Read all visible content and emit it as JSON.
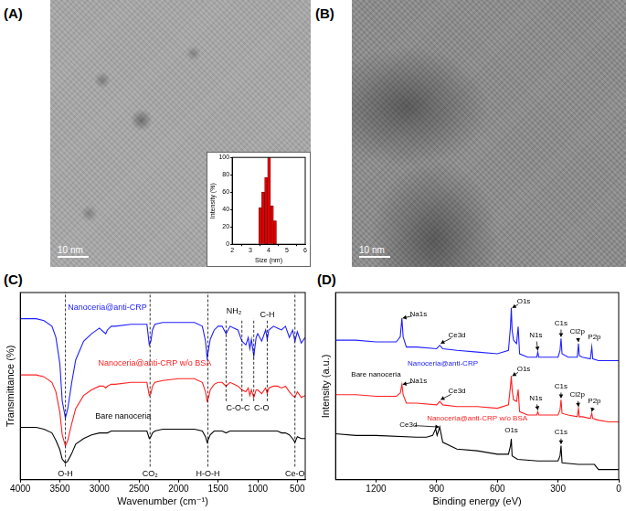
{
  "figure": {
    "panel_labels": [
      "(A)",
      "(B)",
      "(C)",
      "(D)"
    ],
    "scale_bars": [
      "10 nm",
      "10 nm"
    ]
  },
  "chart_data": [
    {
      "type": "histogram",
      "x_label": "Size (nm)",
      "y_label": "Intensity (%)",
      "bins": [
        3.46,
        3.62,
        3.78,
        3.94,
        4.1,
        4.26,
        4.42
      ],
      "counts": [
        42,
        60,
        77,
        100,
        44,
        27
      ],
      "color": "#e00000",
      "xlim": [
        2,
        6
      ],
      "xticks": [
        2,
        3,
        4,
        5,
        6
      ],
      "ylim": [
        0,
        100
      ],
      "yticks": [
        0,
        20,
        40,
        60,
        80,
        100
      ],
      "grid": false
    },
    {
      "type": "line",
      "x_label": "Wavenumber (cm⁻¹)",
      "y_label": "Transmittance (%)",
      "xlim": [
        4000,
        400
      ],
      "xticks": [
        4000,
        3500,
        3000,
        2500,
        2000,
        1500,
        1000,
        500
      ],
      "ylim": [
        0,
        100
      ],
      "tick_labels": "x",
      "grid": false,
      "series": [
        {
          "name": "Nanoceria@anti-CRP",
          "color": "#2020ff",
          "label_at": [
            2900,
            92
          ],
          "x": [
            4000,
            3800,
            3700,
            3600,
            3550,
            3500,
            3470,
            3430,
            3400,
            3350,
            3300,
            3200,
            3100,
            3000,
            2950,
            2920,
            2900,
            2850,
            2800,
            2600,
            2400,
            2370,
            2350,
            2330,
            2300,
            2200,
            2000,
            1800,
            1700,
            1660,
            1640,
            1620,
            1600,
            1550,
            1500,
            1450,
            1400,
            1350,
            1300,
            1250,
            1200,
            1150,
            1120,
            1100,
            1080,
            1050,
            1020,
            1000,
            950,
            900,
            880,
            860,
            800,
            750,
            700,
            650,
            600,
            560,
            530,
            500,
            450,
            400
          ],
          "values": [
            86,
            86,
            85,
            82,
            76,
            62,
            42,
            33,
            38,
            52,
            64,
            74,
            78,
            81,
            79,
            78,
            80,
            82,
            82,
            83,
            83,
            72,
            74,
            80,
            83,
            84,
            84,
            84,
            82,
            74,
            65,
            70,
            75,
            80,
            82,
            82,
            78,
            82,
            81,
            80,
            74,
            72,
            76,
            70,
            75,
            66,
            76,
            78,
            74,
            80,
            75,
            80,
            82,
            81,
            80,
            82,
            76,
            80,
            74,
            79,
            73,
            76
          ]
        },
        {
          "name": "Nanoceria@anti-CRP w/o BSA",
          "color": "#ff2020",
          "label_at": [
            2300,
            62
          ],
          "x": [
            4000,
            3800,
            3700,
            3600,
            3550,
            3500,
            3470,
            3430,
            3400,
            3350,
            3300,
            3200,
            3100,
            3000,
            2950,
            2920,
            2900,
            2850,
            2800,
            2600,
            2400,
            2370,
            2350,
            2330,
            2300,
            2200,
            2000,
            1800,
            1700,
            1660,
            1640,
            1620,
            1600,
            1550,
            1500,
            1450,
            1400,
            1350,
            1300,
            1250,
            1200,
            1150,
            1120,
            1100,
            1080,
            1050,
            1020,
            1000,
            950,
            900,
            880,
            860,
            800,
            750,
            700,
            650,
            600,
            560,
            530,
            500,
            450,
            400
          ],
          "values": [
            56,
            56,
            55,
            52,
            47,
            36,
            24,
            18,
            21,
            30,
            38,
            45,
            48,
            50,
            50,
            49,
            50,
            51,
            51,
            52,
            52,
            45,
            46,
            50,
            52,
            53,
            54,
            54,
            52,
            47,
            42,
            44,
            48,
            51,
            52,
            52,
            50,
            52,
            51,
            50,
            48,
            47,
            49,
            45,
            48,
            44,
            48,
            48,
            46,
            49,
            46,
            49,
            50,
            50,
            49,
            50,
            47,
            45,
            44,
            47,
            44,
            45
          ]
        },
        {
          "name": "Bare nanoceria",
          "color": "#000000",
          "label_at": [
            2700,
            34
          ],
          "x": [
            4000,
            3800,
            3700,
            3600,
            3550,
            3500,
            3470,
            3430,
            3400,
            3350,
            3300,
            3200,
            3100,
            3000,
            2950,
            2920,
            2900,
            2850,
            2800,
            2600,
            2400,
            2370,
            2350,
            2330,
            2300,
            2200,
            2000,
            1800,
            1700,
            1660,
            1640,
            1620,
            1600,
            1550,
            1500,
            1450,
            1400,
            1350,
            1300,
            1250,
            1200,
            1150,
            1120,
            1100,
            1080,
            1050,
            1020,
            1000,
            950,
            900,
            880,
            860,
            800,
            750,
            700,
            650,
            600,
            560,
            530,
            500,
            450,
            400
          ],
          "values": [
            28,
            28,
            27,
            25,
            21,
            16,
            11,
            9,
            10,
            14,
            19,
            22,
            24,
            25,
            25,
            25,
            25,
            26,
            26,
            26,
            26,
            22,
            23,
            25,
            26,
            27,
            27,
            27,
            26,
            23,
            20,
            22,
            24,
            26,
            26,
            26,
            25,
            26,
            26,
            26,
            26,
            26,
            26,
            26,
            26,
            26,
            26,
            26,
            26,
            26,
            26,
            26,
            26,
            26,
            25,
            25,
            24,
            22,
            20,
            23,
            22,
            22
          ]
        }
      ],
      "annotations": [
        {
          "text": "O-H",
          "x": 3430,
          "y": 3
        },
        {
          "text": "CO₂",
          "x": 2360,
          "y": 3
        },
        {
          "text": "H-O-H",
          "x": 1630,
          "y": 3
        },
        {
          "text": "Ce-O",
          "x": 530,
          "y": 3
        },
        {
          "text": "NH₂",
          "x": 1300,
          "y": 90
        },
        {
          "text": "C-H",
          "x": 880,
          "y": 88
        },
        {
          "text": "C-O-C",
          "x": 1250,
          "y": 38
        },
        {
          "text": "C-O",
          "x": 950,
          "y": 38
        }
      ],
      "guide_lines": [
        {
          "x": 3430,
          "y": [
            7,
            100
          ]
        },
        {
          "x": 2360,
          "y": [
            7,
            100
          ]
        },
        {
          "x": 1630,
          "y": [
            7,
            100
          ]
        },
        {
          "x": 530,
          "y": [
            7,
            100
          ]
        },
        {
          "x": 1400,
          "y": [
            42,
            86
          ]
        },
        {
          "x": 1200,
          "y": [
            42,
            86
          ]
        },
        {
          "x": 1050,
          "y": [
            42,
            86
          ]
        },
        {
          "x": 880,
          "y": [
            42,
            85
          ]
        }
      ]
    },
    {
      "type": "line",
      "x_label": "Binding energy (eV)",
      "y_label": "Intensity (a.u.)",
      "xlim": [
        1400,
        0
      ],
      "xticks": [
        1200,
        900,
        600,
        300,
        0
      ],
      "ylim": [
        0,
        110
      ],
      "tick_labels": "x",
      "grid": false,
      "series": [
        {
          "name": "Nanoceria@anti-CRP",
          "color": "#2020ff",
          "label_at": [
            870,
            68
          ],
          "x": [
            1400,
            1300,
            1200,
            1100,
            1080,
            1072,
            1066,
            1050,
            1000,
            900,
            885,
            870,
            800,
            700,
            600,
            545,
            535,
            531,
            527,
            520,
            505,
            497,
            490,
            450,
            405,
            400,
            395,
            300,
            290,
            285,
            280,
            250,
            205,
            199,
            195,
            180,
            140,
            133,
            128,
            100,
            50,
            0
          ],
          "values": [
            82,
            82,
            81,
            81,
            84,
            95,
            84,
            78,
            78,
            77,
            79,
            77,
            76,
            75,
            74,
            76,
            90,
            101,
            88,
            82,
            80,
            90,
            74,
            72,
            72,
            75,
            72,
            72,
            76,
            83,
            74,
            72,
            72,
            80,
            73,
            72,
            71,
            78,
            71,
            70,
            70,
            70
          ]
        },
        {
          "name": "Nanoceria@anti-CRP w/o BSA",
          "color": "#ff2020",
          "label_at": [
            700,
            36
          ],
          "x": [
            1400,
            1300,
            1200,
            1100,
            1080,
            1072,
            1066,
            1050,
            1000,
            900,
            885,
            870,
            800,
            700,
            600,
            545,
            535,
            531,
            527,
            520,
            505,
            497,
            490,
            450,
            405,
            400,
            395,
            300,
            290,
            285,
            280,
            250,
            205,
            199,
            195,
            180,
            140,
            133,
            128,
            100,
            50,
            0
          ],
          "values": [
            50,
            50,
            49,
            49,
            51,
            56,
            50,
            45,
            45,
            44,
            46,
            44,
            43,
            43,
            42,
            44,
            55,
            61,
            53,
            47,
            46,
            53,
            40,
            38,
            38,
            40,
            38,
            38,
            41,
            47,
            39,
            38,
            37,
            42,
            37,
            37,
            36,
            39,
            36,
            35,
            34,
            34
          ]
        },
        {
          "name": "Bare nanoceria",
          "color": "#000000",
          "label_at": [
            1200,
            62
          ],
          "x": [
            1400,
            1300,
            1200,
            1000,
            950,
            920,
            905,
            898,
            885,
            880,
            870,
            800,
            700,
            600,
            545,
            535,
            531,
            527,
            500,
            400,
            300,
            290,
            285,
            280,
            200,
            120,
            100,
            50,
            0
          ],
          "values": [
            27,
            26,
            26,
            25,
            25,
            26,
            30,
            26,
            31,
            28,
            22,
            18,
            17,
            15,
            15,
            20,
            24,
            14,
            12,
            11,
            11,
            14,
            20,
            10,
            9,
            9,
            6,
            6,
            6
          ]
        }
      ],
      "annotations": [
        {
          "text": "Na1s",
          "x": 990,
          "y": 97,
          "point": [
            1068,
            95
          ]
        },
        {
          "text": "Ce3d",
          "x": 800,
          "y": 85,
          "point": [
            880,
            80
          ]
        },
        {
          "text": "O1s",
          "x": 470,
          "y": 105,
          "point": [
            526,
            101
          ]
        },
        {
          "text": "N1s",
          "x": 410,
          "y": 85,
          "point": [
            400,
            76
          ]
        },
        {
          "text": "C1s",
          "x": 285,
          "y": 92,
          "point": [
            285,
            84
          ]
        },
        {
          "text": "Cl2p",
          "x": 205,
          "y": 87,
          "point": [
            199,
            81
          ]
        },
        {
          "text": "P2p",
          "x": 120,
          "y": 84,
          "point": [
            133,
            79
          ]
        },
        {
          "text": "Na1s",
          "x": 990,
          "y": 58,
          "point": [
            1068,
            56
          ]
        },
        {
          "text": "Ce3d",
          "x": 800,
          "y": 52,
          "point": [
            880,
            47
          ]
        },
        {
          "text": "O1s",
          "x": 470,
          "y": 65,
          "point": [
            526,
            61
          ]
        },
        {
          "text": "N1s",
          "x": 410,
          "y": 48,
          "point": [
            400,
            41
          ]
        },
        {
          "text": "C1s",
          "x": 285,
          "y": 55,
          "point": [
            285,
            48
          ]
        },
        {
          "text": "Cl2p",
          "x": 205,
          "y": 50,
          "point": [
            199,
            43
          ]
        },
        {
          "text": "P2p",
          "x": 120,
          "y": 46,
          "point": [
            133,
            40
          ]
        },
        {
          "text": "Ce3d",
          "x": 1040,
          "y": 32,
          "point": [
            888,
            31
          ]
        },
        {
          "text": "O1s",
          "x": 531,
          "y": 29,
          "point": [
            531,
            25
          ]
        },
        {
          "text": "C1s",
          "x": 285,
          "y": 28,
          "point": [
            285,
            21
          ]
        }
      ]
    }
  ]
}
